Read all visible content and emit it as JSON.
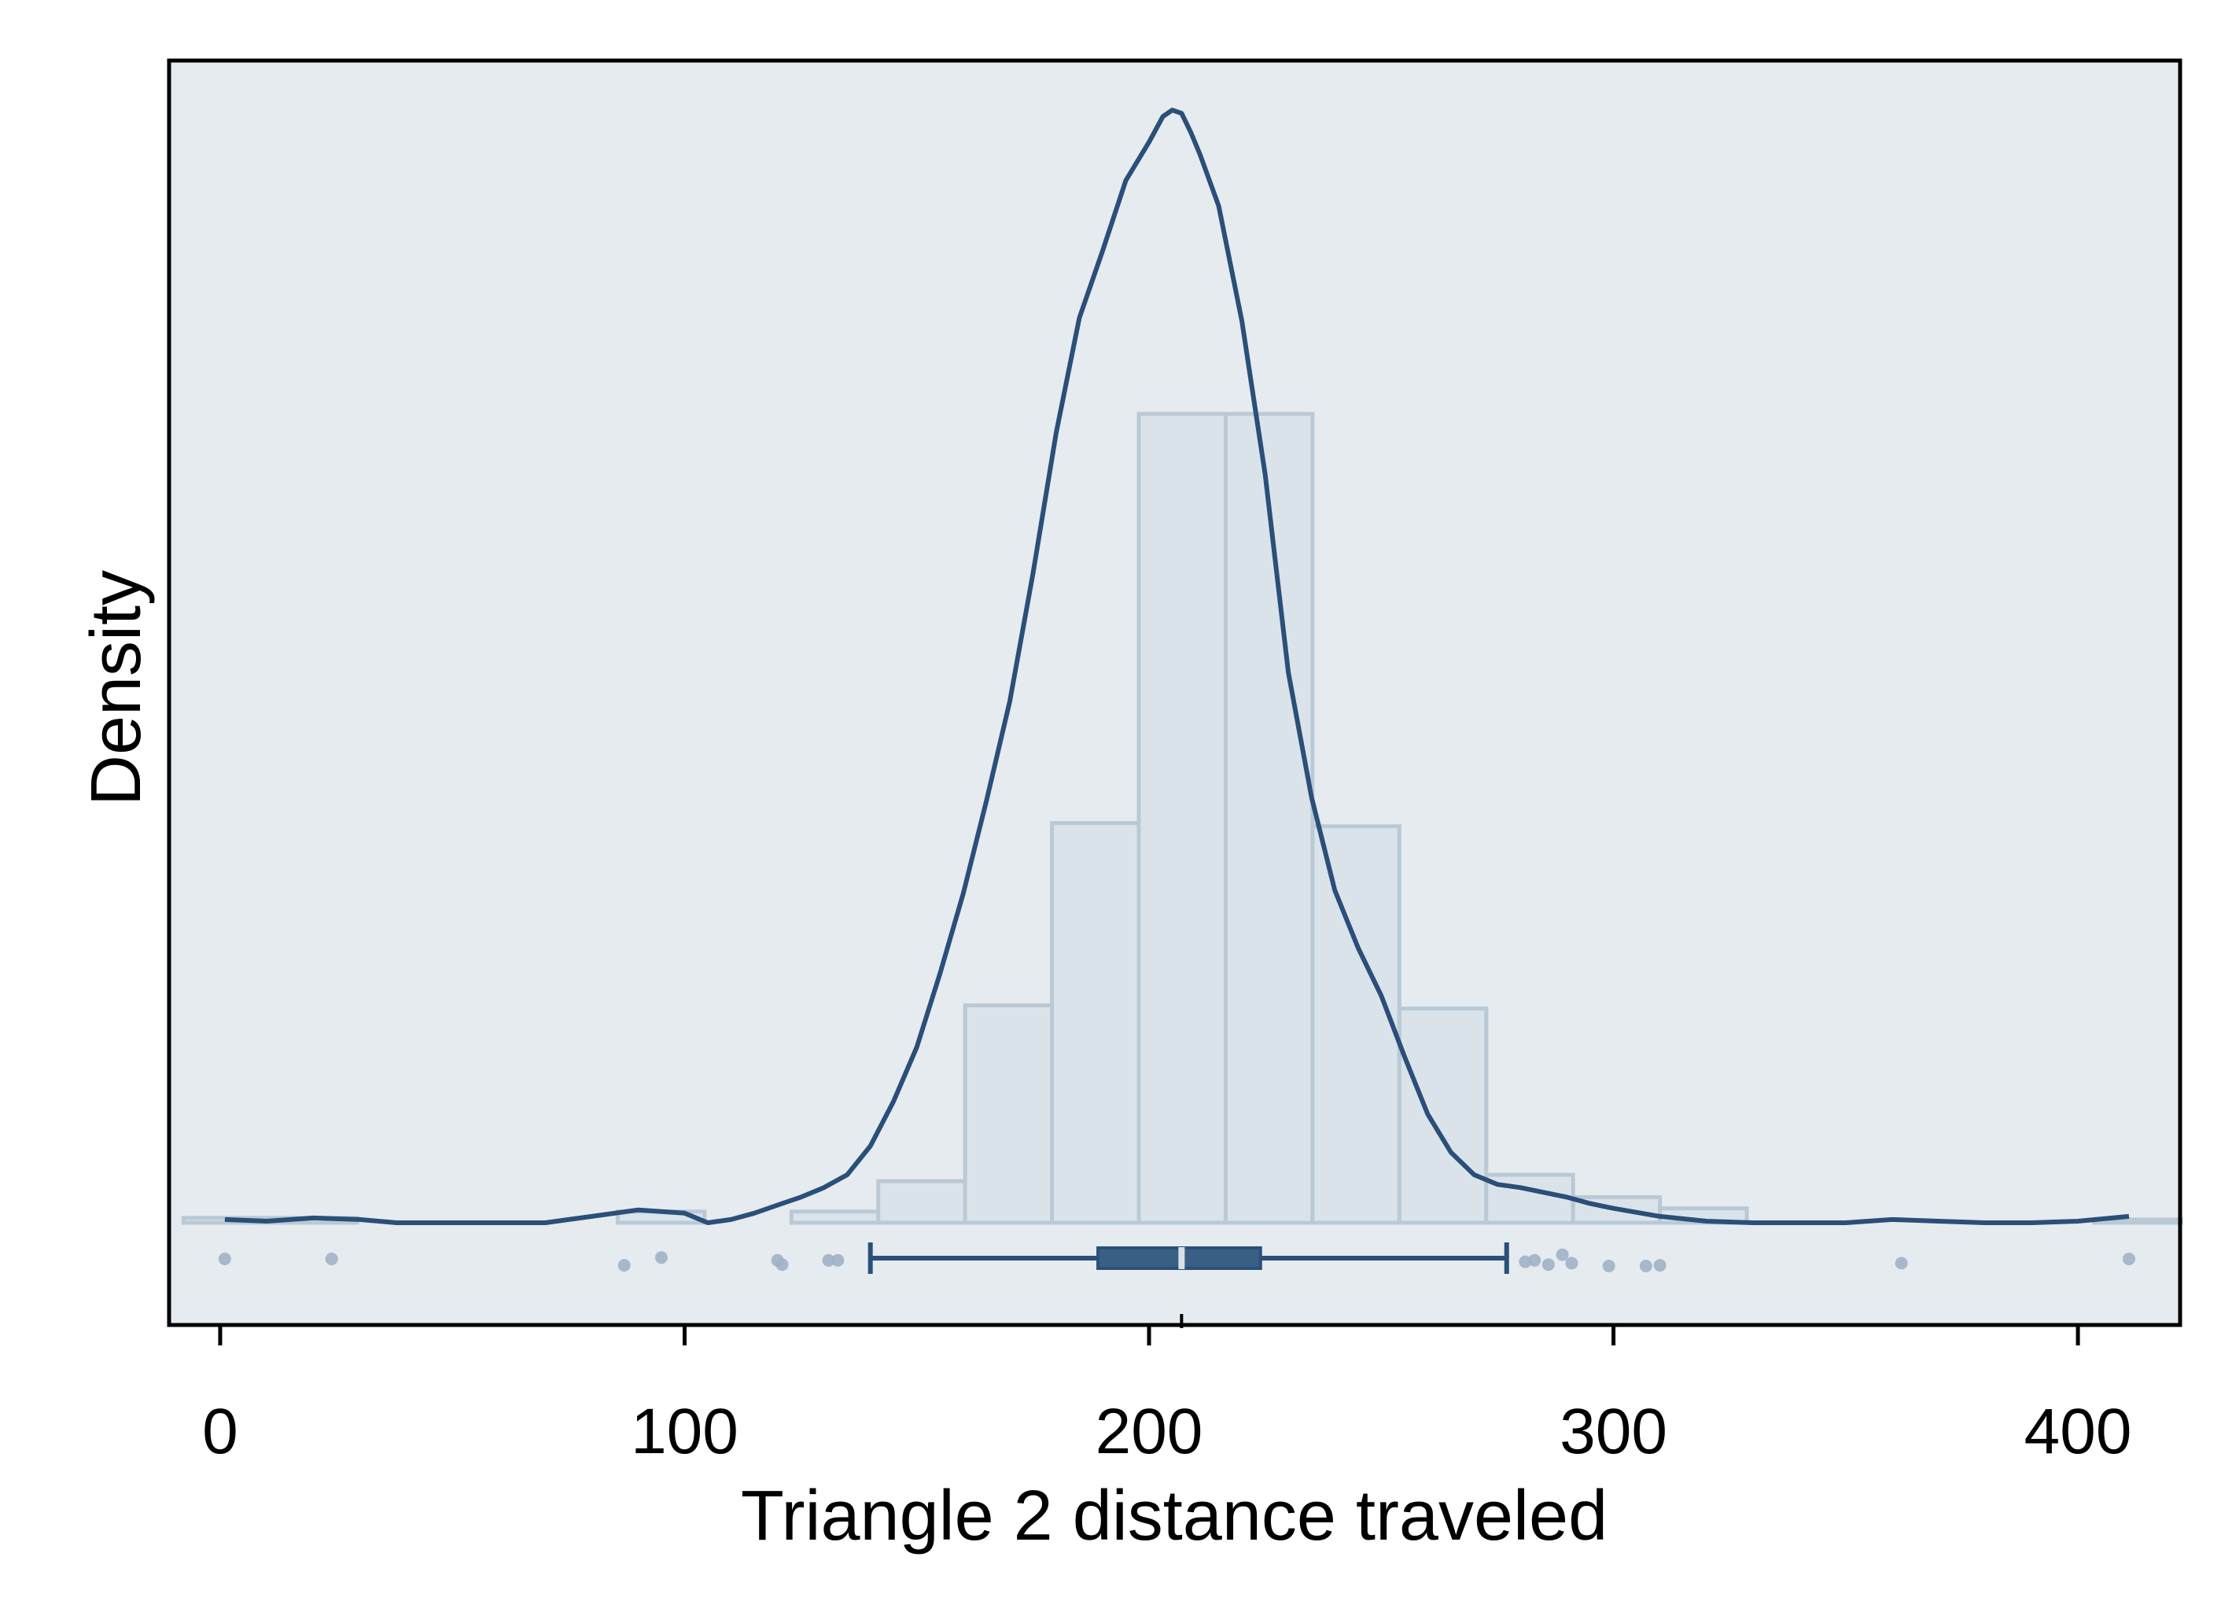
{
  "chart_data": {
    "type": "histogram",
    "title": "",
    "xlabel": "Triangle 2 distance traveled",
    "ylabel": "Density",
    "xlim": [
      -11,
      422
    ],
    "xticks": [
      0,
      100,
      200,
      300,
      400
    ],
    "y_ticks_shown": false,
    "grid": false,
    "legend": "none",
    "colors": {
      "plot_background": "#e6ebf0",
      "bar_fill": "#dbe3ea",
      "bar_edge": "#b9c9d6",
      "density_line": "#2a4f78",
      "box": "#3a5f85",
      "points": "#9fb2c4"
    },
    "histogram": {
      "bin_edges": [
        -7.9,
        10.8,
        29.5,
        48.2,
        66.9,
        85.6,
        104.3,
        123.0,
        141.7,
        160.4,
        179.1,
        197.8,
        216.5,
        235.2,
        253.9,
        272.6,
        291.3,
        310.0,
        328.7,
        347.4,
        366.1,
        384.8,
        403.5,
        422.2
      ],
      "bars": [
        {
          "x0": -7.9,
          "x1": 10.8,
          "density": 0.00015
        },
        {
          "x0": 10.8,
          "x1": 29.5,
          "density": 0.00015
        },
        {
          "x0": 29.5,
          "x1": 48.2,
          "density": 0.0
        },
        {
          "x0": 48.2,
          "x1": 66.9,
          "density": 0.0
        },
        {
          "x0": 66.9,
          "x1": 85.6,
          "density": 0.0
        },
        {
          "x0": 85.6,
          "x1": 104.3,
          "density": 0.00035
        },
        {
          "x0": 104.3,
          "x1": 123.0,
          "density": 0.0
        },
        {
          "x0": 123.0,
          "x1": 141.7,
          "density": 0.00035
        },
        {
          "x0": 141.7,
          "x1": 160.4,
          "density": 0.0013
        },
        {
          "x0": 160.4,
          "x1": 179.1,
          "density": 0.0068
        },
        {
          "x0": 179.1,
          "x1": 197.8,
          "density": 0.0125
        },
        {
          "x0": 197.8,
          "x1": 216.5,
          "density": 0.0253
        },
        {
          "x0": 216.5,
          "x1": 235.2,
          "density": 0.0253
        },
        {
          "x0": 235.2,
          "x1": 253.9,
          "density": 0.0124
        },
        {
          "x0": 253.9,
          "x1": 272.6,
          "density": 0.0067
        },
        {
          "x0": 272.6,
          "x1": 291.3,
          "density": 0.0015
        },
        {
          "x0": 291.3,
          "x1": 310.0,
          "density": 0.0008
        },
        {
          "x0": 310.0,
          "x1": 328.7,
          "density": 0.00045
        },
        {
          "x0": 328.7,
          "x1": 347.4,
          "density": 0.0
        },
        {
          "x0": 347.4,
          "x1": 366.1,
          "density": 0.0
        },
        {
          "x0": 366.1,
          "x1": 384.8,
          "density": 0.0
        },
        {
          "x0": 384.8,
          "x1": 403.5,
          "density": 0.0
        },
        {
          "x0": 403.5,
          "x1": 422.2,
          "density": 0.0001
        }
      ]
    },
    "density_curve": {
      "x": [
        1,
        10,
        20,
        30,
        38,
        50,
        60,
        70,
        80,
        90,
        100,
        105,
        110,
        115,
        120,
        125,
        130,
        135,
        140,
        145,
        150,
        155,
        160,
        165,
        170,
        175,
        180,
        185,
        190,
        195,
        200,
        203,
        205,
        207,
        209,
        211,
        215,
        220,
        225,
        230,
        235,
        240,
        245,
        250,
        255,
        260,
        265,
        270,
        275,
        280,
        285,
        290,
        295,
        300,
        310,
        320,
        330,
        340,
        350,
        360,
        370,
        380,
        390,
        400,
        411
      ],
      "y": [
        0.0001,
        5e-05,
        0.00015,
        0.0001,
        0.0,
        0.0,
        0.0,
        0.0,
        0.0002,
        0.0004,
        0.0003,
        0.0,
        0.0001,
        0.0003,
        0.00055,
        0.0008,
        0.0011,
        0.0015,
        0.0024,
        0.0038,
        0.0055,
        0.0078,
        0.0103,
        0.0132,
        0.0163,
        0.0203,
        0.0247,
        0.0283,
        0.0304,
        0.0326,
        0.0338,
        0.0346,
        0.0348,
        0.0347,
        0.0341,
        0.0334,
        0.0318,
        0.0282,
        0.0234,
        0.0172,
        0.0133,
        0.0104,
        0.0086,
        0.0071,
        0.0052,
        0.0034,
        0.0022,
        0.0015,
        0.0012,
        0.0011,
        0.00095,
        0.0008,
        0.0006,
        0.00045,
        0.0002,
        5e-05,
        0.0,
        0.0,
        0.0,
        0.0001,
        5e-05,
        0.0,
        0.0,
        5e-05,
        0.0002
      ]
    },
    "ylim": [
      -0.003,
      0.0365
    ],
    "boxplot": {
      "whisker_low": 140,
      "q1": 189,
      "median": 207,
      "q3": 224,
      "whisker_high": 277
    },
    "outliers": [
      {
        "x": 1,
        "y_jitter": 0.5
      },
      {
        "x": 24,
        "y_jitter": 0.5
      },
      {
        "x": 87,
        "y_jitter": 0.05
      },
      {
        "x": 95,
        "y_jitter": 0.6
      },
      {
        "x": 120,
        "y_jitter": 0.4
      },
      {
        "x": 121,
        "y_jitter": 0.1
      },
      {
        "x": 131,
        "y_jitter": 0.4
      },
      {
        "x": 133,
        "y_jitter": 0.4
      },
      {
        "x": 281,
        "y_jitter": 0.3
      },
      {
        "x": 283,
        "y_jitter": 0.4
      },
      {
        "x": 286,
        "y_jitter": 0.1
      },
      {
        "x": 289,
        "y_jitter": 0.8
      },
      {
        "x": 291,
        "y_jitter": 0.2
      },
      {
        "x": 299,
        "y_jitter": 0.0
      },
      {
        "x": 307,
        "y_jitter": 0.0
      },
      {
        "x": 310,
        "y_jitter": 0.05
      },
      {
        "x": 362,
        "y_jitter": 0.2
      },
      {
        "x": 411,
        "y_jitter": 0.5
      }
    ]
  }
}
